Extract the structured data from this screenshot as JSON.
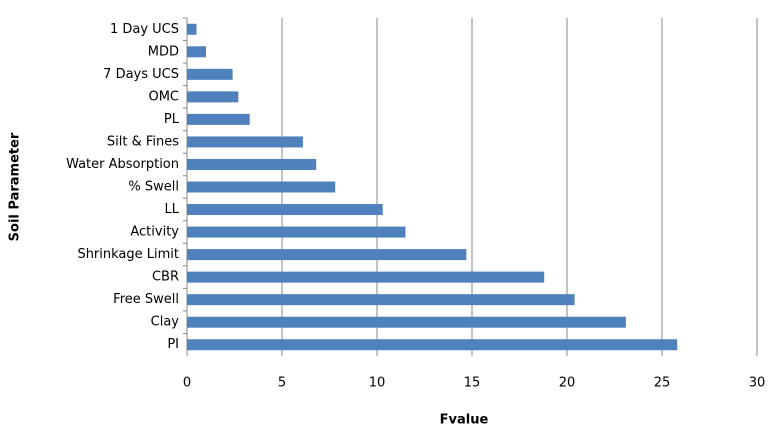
{
  "chart_data": {
    "type": "hbar",
    "x_label": "Fvalue",
    "y_label": "Soil Parameter",
    "categories": [
      "1 Day UCS",
      "MDD",
      "7 Days UCS",
      "OMC",
      "PL",
      "Silt & Fines",
      "Water Absorption",
      "% Swell",
      "LL",
      "Activity",
      "Shrinkage Limit",
      "CBR",
      "Free Swell",
      "Clay",
      "PI"
    ],
    "values": [
      0.5,
      1.0,
      2.4,
      2.7,
      3.3,
      6.1,
      6.8,
      7.8,
      10.3,
      11.5,
      14.7,
      18.8,
      20.4,
      23.1,
      25.8
    ],
    "color": "#4f81bd",
    "xlim": [
      0,
      30
    ],
    "xticks": [
      0,
      5,
      10,
      15,
      20,
      25,
      30
    ],
    "grid": true
  }
}
